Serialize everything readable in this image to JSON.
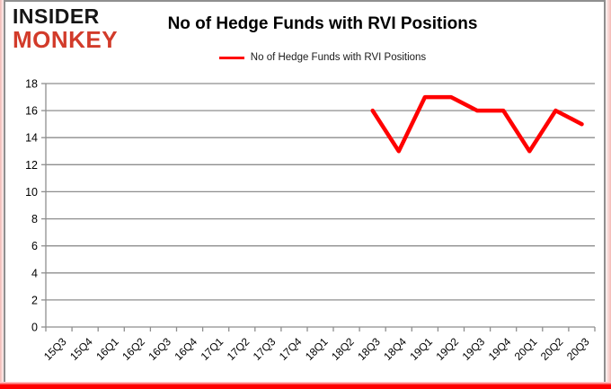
{
  "logo": {
    "line1": "INSIDER",
    "line2": "MONKEY"
  },
  "header": {
    "title": "No of Hedge Funds with RVI Positions"
  },
  "legend": {
    "label": "No of Hedge Funds with RVI Positions",
    "line_color": "#ff0000"
  },
  "colors": {
    "logo_black": "#151515",
    "logo_red": "#d23b2a",
    "series_red": "#ff0000",
    "axis_gray": "#8e8e8e",
    "border_gray": "#8f8f8f",
    "bottom_bar_red": "#ff0000"
  },
  "chart_data": {
    "type": "line",
    "title": "No of Hedge Funds with RVI Positions",
    "categories": [
      "15Q3",
      "15Q4",
      "16Q1",
      "16Q2",
      "16Q3",
      "16Q4",
      "17Q1",
      "17Q2",
      "17Q3",
      "17Q4",
      "18Q1",
      "18Q2",
      "18Q3",
      "18Q4",
      "19Q1",
      "19Q2",
      "19Q3",
      "19Q4",
      "20Q1",
      "20Q2",
      "20Q3"
    ],
    "series": [
      {
        "name": "No of Hedge Funds with RVI Positions",
        "color": "#ff0000",
        "values": [
          null,
          null,
          null,
          null,
          null,
          null,
          null,
          null,
          null,
          null,
          null,
          null,
          16,
          13,
          17,
          17,
          16,
          16,
          13,
          16,
          15
        ]
      }
    ],
    "xlabel": "",
    "ylabel": "",
    "ylim": [
      0,
      18
    ],
    "ytick_step": 2,
    "grid": true,
    "gridline_color": "#8e8e8e",
    "tick_label_color": "#000000",
    "legend_position": "top"
  }
}
